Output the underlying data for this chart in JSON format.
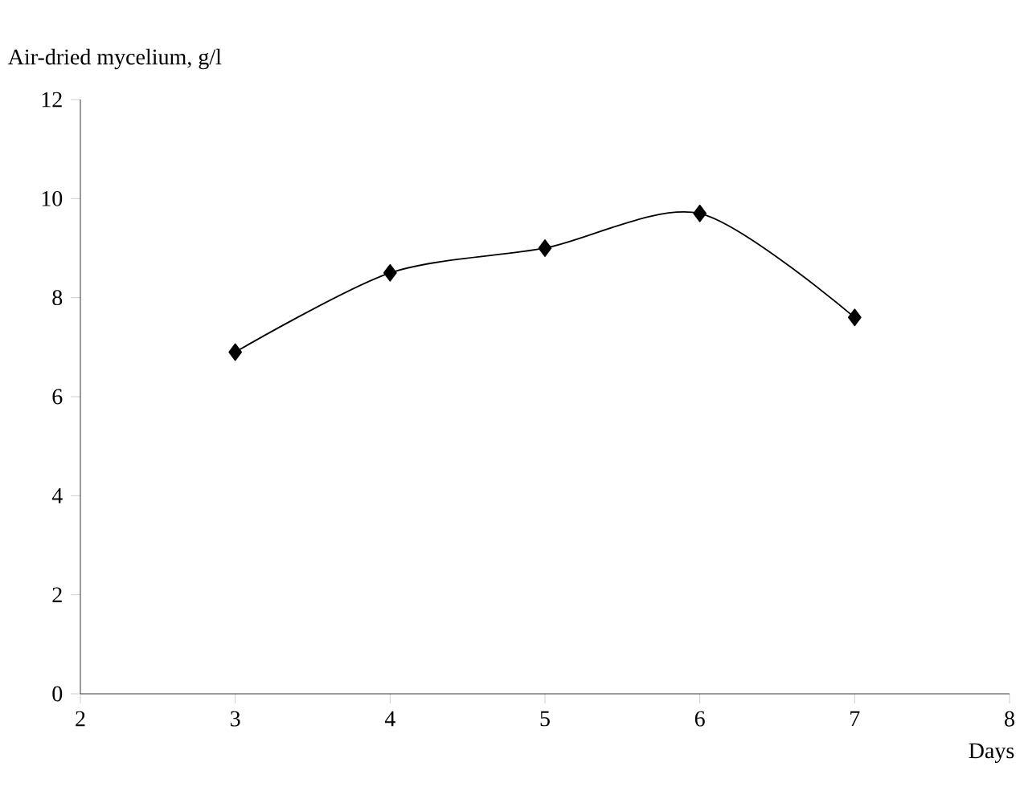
{
  "chart_data": {
    "type": "line",
    "xlabel": "Days",
    "ylabel": "Air-dried mycelium, g/l",
    "x": [
      3,
      4,
      5,
      6,
      7
    ],
    "values": [
      6.9,
      8.5,
      9.0,
      9.7,
      7.6
    ],
    "color": "#000000",
    "marker": "diamond",
    "line_style": "solid",
    "xlim": [
      2,
      8
    ],
    "ylim": [
      0,
      12
    ],
    "xticks": [
      2,
      3,
      4,
      5,
      6,
      7,
      8
    ],
    "yticks": [
      0,
      2,
      4,
      6,
      8,
      10,
      12
    ]
  }
}
